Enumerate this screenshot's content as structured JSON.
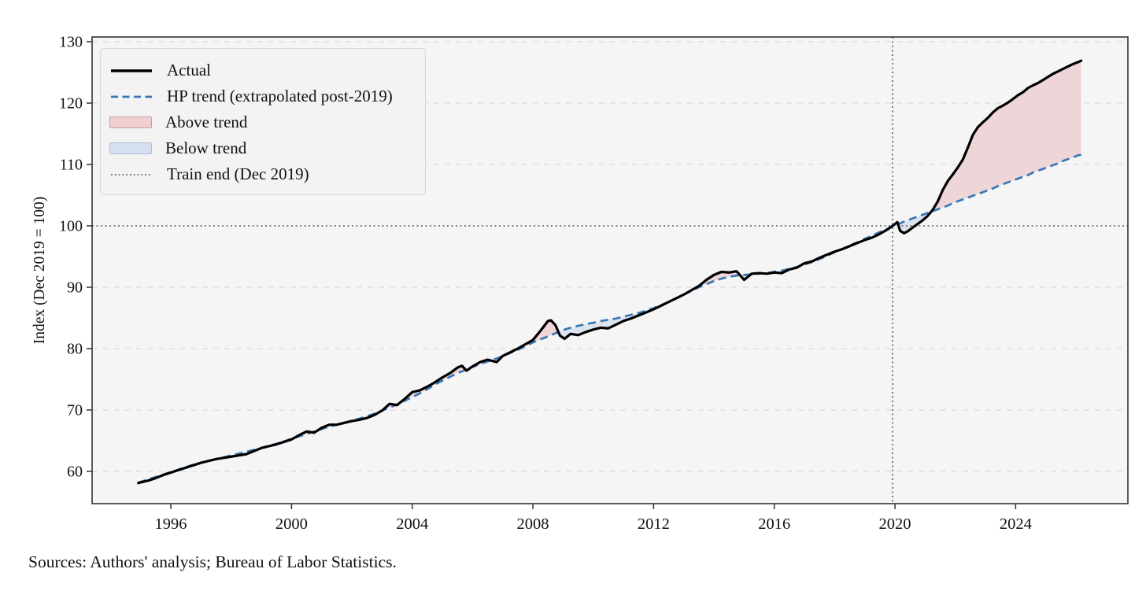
{
  "sources_note": "Sources: Authors' analysis; Bureau of Labor Statistics.",
  "chart_data": {
    "type": "line",
    "title": "",
    "xlabel": "",
    "ylabel": "Index (Dec 2019 = 100)",
    "xlim": [
      1993.39,
      2027.72
    ],
    "ylim": [
      54.74,
      130.77
    ],
    "xticks": [
      1996,
      2000,
      2004,
      2008,
      2012,
      2016,
      2020,
      2024
    ],
    "yticks": [
      60,
      70,
      80,
      90,
      100,
      110,
      120,
      130
    ],
    "grid": "horizontal-dashed",
    "reference_line_y": 100,
    "train_end_x": 2019.92,
    "legend_position": "upper-left",
    "legend": [
      {
        "label": "Actual",
        "swatch": "solid-line"
      },
      {
        "label": "HP trend (extrapolated post-2019)",
        "swatch": "dashed-line"
      },
      {
        "label": "Above trend",
        "swatch": "pink-fill"
      },
      {
        "label": "Below trend",
        "swatch": "blue-fill"
      },
      {
        "label": "Train end (Dec 2019)",
        "swatch": "dotted-line"
      }
    ],
    "colors": {
      "actual": "#000000",
      "trend": "#3878b4",
      "above_fill": "#eed5d7",
      "below_fill": "#dde4ef",
      "above_swatch": "#f0cfd2",
      "above_swatch_border": "#d09a9e",
      "below_swatch": "#d7e0ee",
      "below_swatch_border": "#a9bcd4",
      "reference": "#3a3a3a",
      "train_swatch": "#666666",
      "grid": "#dcdcdc",
      "frame": "#333333",
      "plot_bg": "#f5f5f6",
      "text": "#111111"
    },
    "series_names": [
      "Actual",
      "HP trend"
    ],
    "points": [
      [
        1994.92,
        58.1,
        58.2
      ],
      [
        1995.0,
        58.2,
        58.3
      ],
      [
        1995.25,
        58.5,
        58.7
      ],
      [
        1995.5,
        58.9,
        59.1
      ],
      [
        1995.75,
        59.4,
        59.5
      ],
      [
        1996.0,
        59.8,
        59.9
      ],
      [
        1996.25,
        60.2,
        60.3
      ],
      [
        1996.5,
        60.6,
        60.7
      ],
      [
        1996.75,
        61.0,
        61.1
      ],
      [
        1997.0,
        61.4,
        61.4
      ],
      [
        1997.25,
        61.7,
        61.7
      ],
      [
        1997.5,
        62.0,
        62.0
      ],
      [
        1997.75,
        62.2,
        62.3
      ],
      [
        1998.0,
        62.4,
        62.6
      ],
      [
        1998.25,
        62.6,
        62.9
      ],
      [
        1998.5,
        62.8,
        63.2
      ],
      [
        1998.75,
        63.3,
        63.5
      ],
      [
        1999.0,
        63.8,
        63.8
      ],
      [
        1999.25,
        64.1,
        64.2
      ],
      [
        1999.5,
        64.4,
        64.5
      ],
      [
        1999.75,
        64.8,
        64.9
      ],
      [
        2000.0,
        65.2,
        65.3
      ],
      [
        2000.25,
        65.9,
        65.7
      ],
      [
        2000.5,
        66.5,
        66.1
      ],
      [
        2000.75,
        66.3,
        66.5
      ],
      [
        2001.0,
        67.1,
        66.9
      ],
      [
        2001.25,
        67.6,
        67.3
      ],
      [
        2001.5,
        67.6,
        67.6
      ],
      [
        2001.75,
        67.9,
        67.9
      ],
      [
        2002.0,
        68.2,
        68.3
      ],
      [
        2002.25,
        68.4,
        68.6
      ],
      [
        2002.5,
        68.7,
        69.0
      ],
      [
        2002.75,
        69.2,
        69.4
      ],
      [
        2003.0,
        69.9,
        69.9
      ],
      [
        2003.25,
        71.0,
        70.4
      ],
      [
        2003.5,
        70.8,
        70.9
      ],
      [
        2003.75,
        71.8,
        71.5
      ],
      [
        2004.0,
        72.9,
        72.1
      ],
      [
        2004.25,
        73.2,
        72.7
      ],
      [
        2004.5,
        73.8,
        73.4
      ],
      [
        2004.75,
        74.5,
        74.1
      ],
      [
        2005.0,
        75.3,
        74.8
      ],
      [
        2005.25,
        76.0,
        75.4
      ],
      [
        2005.5,
        76.9,
        76.0
      ],
      [
        2005.65,
        77.2,
        76.3
      ],
      [
        2005.8,
        76.4,
        76.6
      ],
      [
        2006.0,
        77.1,
        77.0
      ],
      [
        2006.25,
        77.8,
        77.5
      ],
      [
        2006.5,
        78.2,
        77.9
      ],
      [
        2006.8,
        77.8,
        78.4
      ],
      [
        2007.0,
        78.8,
        78.8
      ],
      [
        2007.25,
        79.4,
        79.3
      ],
      [
        2007.5,
        80.0,
        79.8
      ],
      [
        2007.75,
        80.7,
        80.4
      ],
      [
        2008.0,
        81.4,
        81.0
      ],
      [
        2008.25,
        82.9,
        81.5
      ],
      [
        2008.5,
        84.5,
        82.0
      ],
      [
        2008.6,
        84.6,
        82.2
      ],
      [
        2008.75,
        83.8,
        82.5
      ],
      [
        2008.9,
        82.1,
        82.8
      ],
      [
        2009.05,
        81.6,
        83.1
      ],
      [
        2009.25,
        82.4,
        83.4
      ],
      [
        2009.5,
        82.2,
        83.7
      ],
      [
        2009.75,
        82.7,
        84.0
      ],
      [
        2010.0,
        83.1,
        84.2
      ],
      [
        2010.25,
        83.4,
        84.5
      ],
      [
        2010.5,
        83.3,
        84.7
      ],
      [
        2010.75,
        83.9,
        84.9
      ],
      [
        2011.0,
        84.5,
        85.2
      ],
      [
        2011.25,
        84.9,
        85.5
      ],
      [
        2011.5,
        85.4,
        85.8
      ],
      [
        2011.75,
        85.9,
        86.2
      ],
      [
        2012.0,
        86.4,
        86.6
      ],
      [
        2012.25,
        87.0,
        87.1
      ],
      [
        2012.5,
        87.6,
        87.6
      ],
      [
        2012.75,
        88.2,
        88.2
      ],
      [
        2013.0,
        88.8,
        88.8
      ],
      [
        2013.25,
        89.5,
        89.4
      ],
      [
        2013.5,
        90.2,
        90.0
      ],
      [
        2013.75,
        91.2,
        90.5
      ],
      [
        2014.0,
        92.0,
        91.0
      ],
      [
        2014.25,
        92.5,
        91.4
      ],
      [
        2014.5,
        92.4,
        91.7
      ],
      [
        2014.75,
        92.6,
        91.9
      ],
      [
        2015.0,
        91.2,
        92.0
      ],
      [
        2015.25,
        92.2,
        92.1
      ],
      [
        2015.5,
        92.3,
        92.2
      ],
      [
        2015.75,
        92.2,
        92.3
      ],
      [
        2016.0,
        92.4,
        92.5
      ],
      [
        2016.25,
        92.3,
        92.7
      ],
      [
        2016.5,
        92.9,
        93.0
      ],
      [
        2016.75,
        93.2,
        93.3
      ],
      [
        2017.0,
        93.9,
        93.7
      ],
      [
        2017.25,
        94.2,
        94.1
      ],
      [
        2017.5,
        94.8,
        94.6
      ],
      [
        2017.75,
        95.3,
        95.1
      ],
      [
        2018.0,
        95.8,
        95.7
      ],
      [
        2018.25,
        96.2,
        96.2
      ],
      [
        2018.5,
        96.7,
        96.8
      ],
      [
        2018.75,
        97.2,
        97.3
      ],
      [
        2019.0,
        97.7,
        97.9
      ],
      [
        2019.25,
        98.1,
        98.4
      ],
      [
        2019.5,
        98.7,
        99.0
      ],
      [
        2019.75,
        99.4,
        99.5
      ],
      [
        2019.92,
        100.0,
        100.0
      ],
      [
        2020.08,
        100.6,
        100.3
      ],
      [
        2020.17,
        99.2,
        100.4
      ],
      [
        2020.3,
        98.8,
        100.7
      ],
      [
        2020.42,
        99.1,
        100.9
      ],
      [
        2020.58,
        99.7,
        101.2
      ],
      [
        2020.75,
        100.3,
        101.5
      ],
      [
        2020.92,
        100.9,
        101.8
      ],
      [
        2021.08,
        101.6,
        102.1
      ],
      [
        2021.25,
        102.6,
        102.4
      ],
      [
        2021.42,
        104.0,
        102.7
      ],
      [
        2021.58,
        105.8,
        103.0
      ],
      [
        2021.75,
        107.3,
        103.3
      ],
      [
        2021.92,
        108.4,
        103.7
      ],
      [
        2022.08,
        109.5,
        104.0
      ],
      [
        2022.25,
        110.8,
        104.3
      ],
      [
        2022.42,
        112.8,
        104.6
      ],
      [
        2022.58,
        114.8,
        104.9
      ],
      [
        2022.75,
        116.1,
        105.2
      ],
      [
        2022.92,
        116.9,
        105.5
      ],
      [
        2023.08,
        117.6,
        105.8
      ],
      [
        2023.25,
        118.5,
        106.1
      ],
      [
        2023.42,
        119.2,
        106.5
      ],
      [
        2023.58,
        119.6,
        106.8
      ],
      [
        2023.75,
        120.1,
        107.1
      ],
      [
        2023.92,
        120.7,
        107.4
      ],
      [
        2024.08,
        121.3,
        107.7
      ],
      [
        2024.25,
        121.8,
        108.0
      ],
      [
        2024.42,
        122.5,
        108.3
      ],
      [
        2024.58,
        122.9,
        108.7
      ],
      [
        2024.75,
        123.3,
        109.0
      ],
      [
        2024.92,
        123.8,
        109.3
      ],
      [
        2025.08,
        124.3,
        109.6
      ],
      [
        2025.25,
        124.8,
        109.9
      ],
      [
        2025.42,
        125.2,
        110.2
      ],
      [
        2025.58,
        125.6,
        110.6
      ],
      [
        2025.75,
        126.0,
        110.9
      ],
      [
        2025.92,
        126.4,
        111.2
      ],
      [
        2026.08,
        126.7,
        111.5
      ],
      [
        2026.17,
        126.9,
        111.6
      ]
    ]
  }
}
